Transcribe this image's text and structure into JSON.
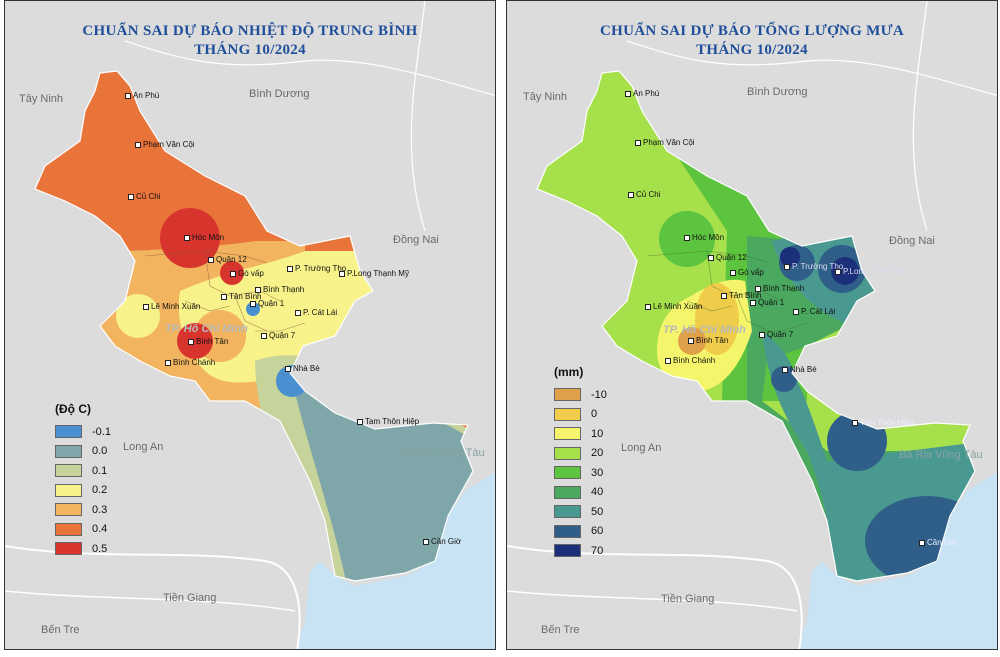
{
  "left_map": {
    "title_line1": "CHUẨN SAI DỰ BÁO NHIỆT ĐỘ TRUNG BÌNH",
    "title_line2": "THÁNG 10/2024",
    "legend": {
      "title": "(Độ C)",
      "items": [
        {
          "label": "-0.1",
          "color": "#4a8fd0"
        },
        {
          "label": "0.0",
          "color": "#7fa7a9"
        },
        {
          "label": "0.1",
          "color": "#c6d39a"
        },
        {
          "label": "0.2",
          "color": "#f7f28a"
        },
        {
          "label": "0.3",
          "color": "#f2b45f"
        },
        {
          "label": "0.4",
          "color": "#e8743a"
        },
        {
          "label": "0.5",
          "color": "#d8342e"
        }
      ]
    }
  },
  "right_map": {
    "title_line1": "CHUẨN SAI DỰ BÁO TỔNG LƯỢNG MƯA",
    "title_line2": "THÁNG 10/2024",
    "legend": {
      "title": "(mm)",
      "items": [
        {
          "label": "-10",
          "color": "#e0a04a"
        },
        {
          "label": "0",
          "color": "#efcd4a"
        },
        {
          "label": "10",
          "color": "#f4f56a"
        },
        {
          "label": "20",
          "color": "#a6e04a"
        },
        {
          "label": "30",
          "color": "#5cc43e"
        },
        {
          "label": "40",
          "color": "#4aa95e"
        },
        {
          "label": "50",
          "color": "#4a9990"
        },
        {
          "label": "60",
          "color": "#2f5f88"
        },
        {
          "label": "70",
          "color": "#1c2f7a"
        }
      ]
    }
  },
  "places": {
    "an_phu": "An Phú",
    "pham_van_coi": "Phạm Văn Cội",
    "cu_chi": "Củ Chi",
    "hoc_mon": "Hóc Môn",
    "quan_12": "Quận 12",
    "go_vap": "Gò vấp",
    "p_truong_tho": "P. Trường Thọ",
    "p_long_thanh_my": "P.Long Thạnh Mỹ",
    "tan_binh": "Tân Bình",
    "binh_thanh": "Bình Thạnh",
    "quan_1": "Quận 1",
    "le_minh_xuan": "Lê Minh Xuân",
    "binh_tan": "Bình Tân",
    "p_cat_lai": "P. Cát Lái",
    "quan_7": "Quận 7",
    "binh_chanh": "Bình Chánh",
    "nha_be": "Nhà Bè",
    "tam_thon_hiep": "Tam Thôn Hiệp",
    "can_gio": "Cần Giờ"
  },
  "regions": {
    "tay_ninh": "Tây Ninh",
    "binh_duong": "Bình Dương",
    "dong_nai": "Đồng Nai",
    "long_an": "Long An",
    "ba_ria_vung_tau": "Bà Rịa Vũng Tàu",
    "tien_giang": "Tiền Giang",
    "ben_tre": "Bến Tre",
    "tp_hcm": "TP. Hồ Chí Minh"
  }
}
